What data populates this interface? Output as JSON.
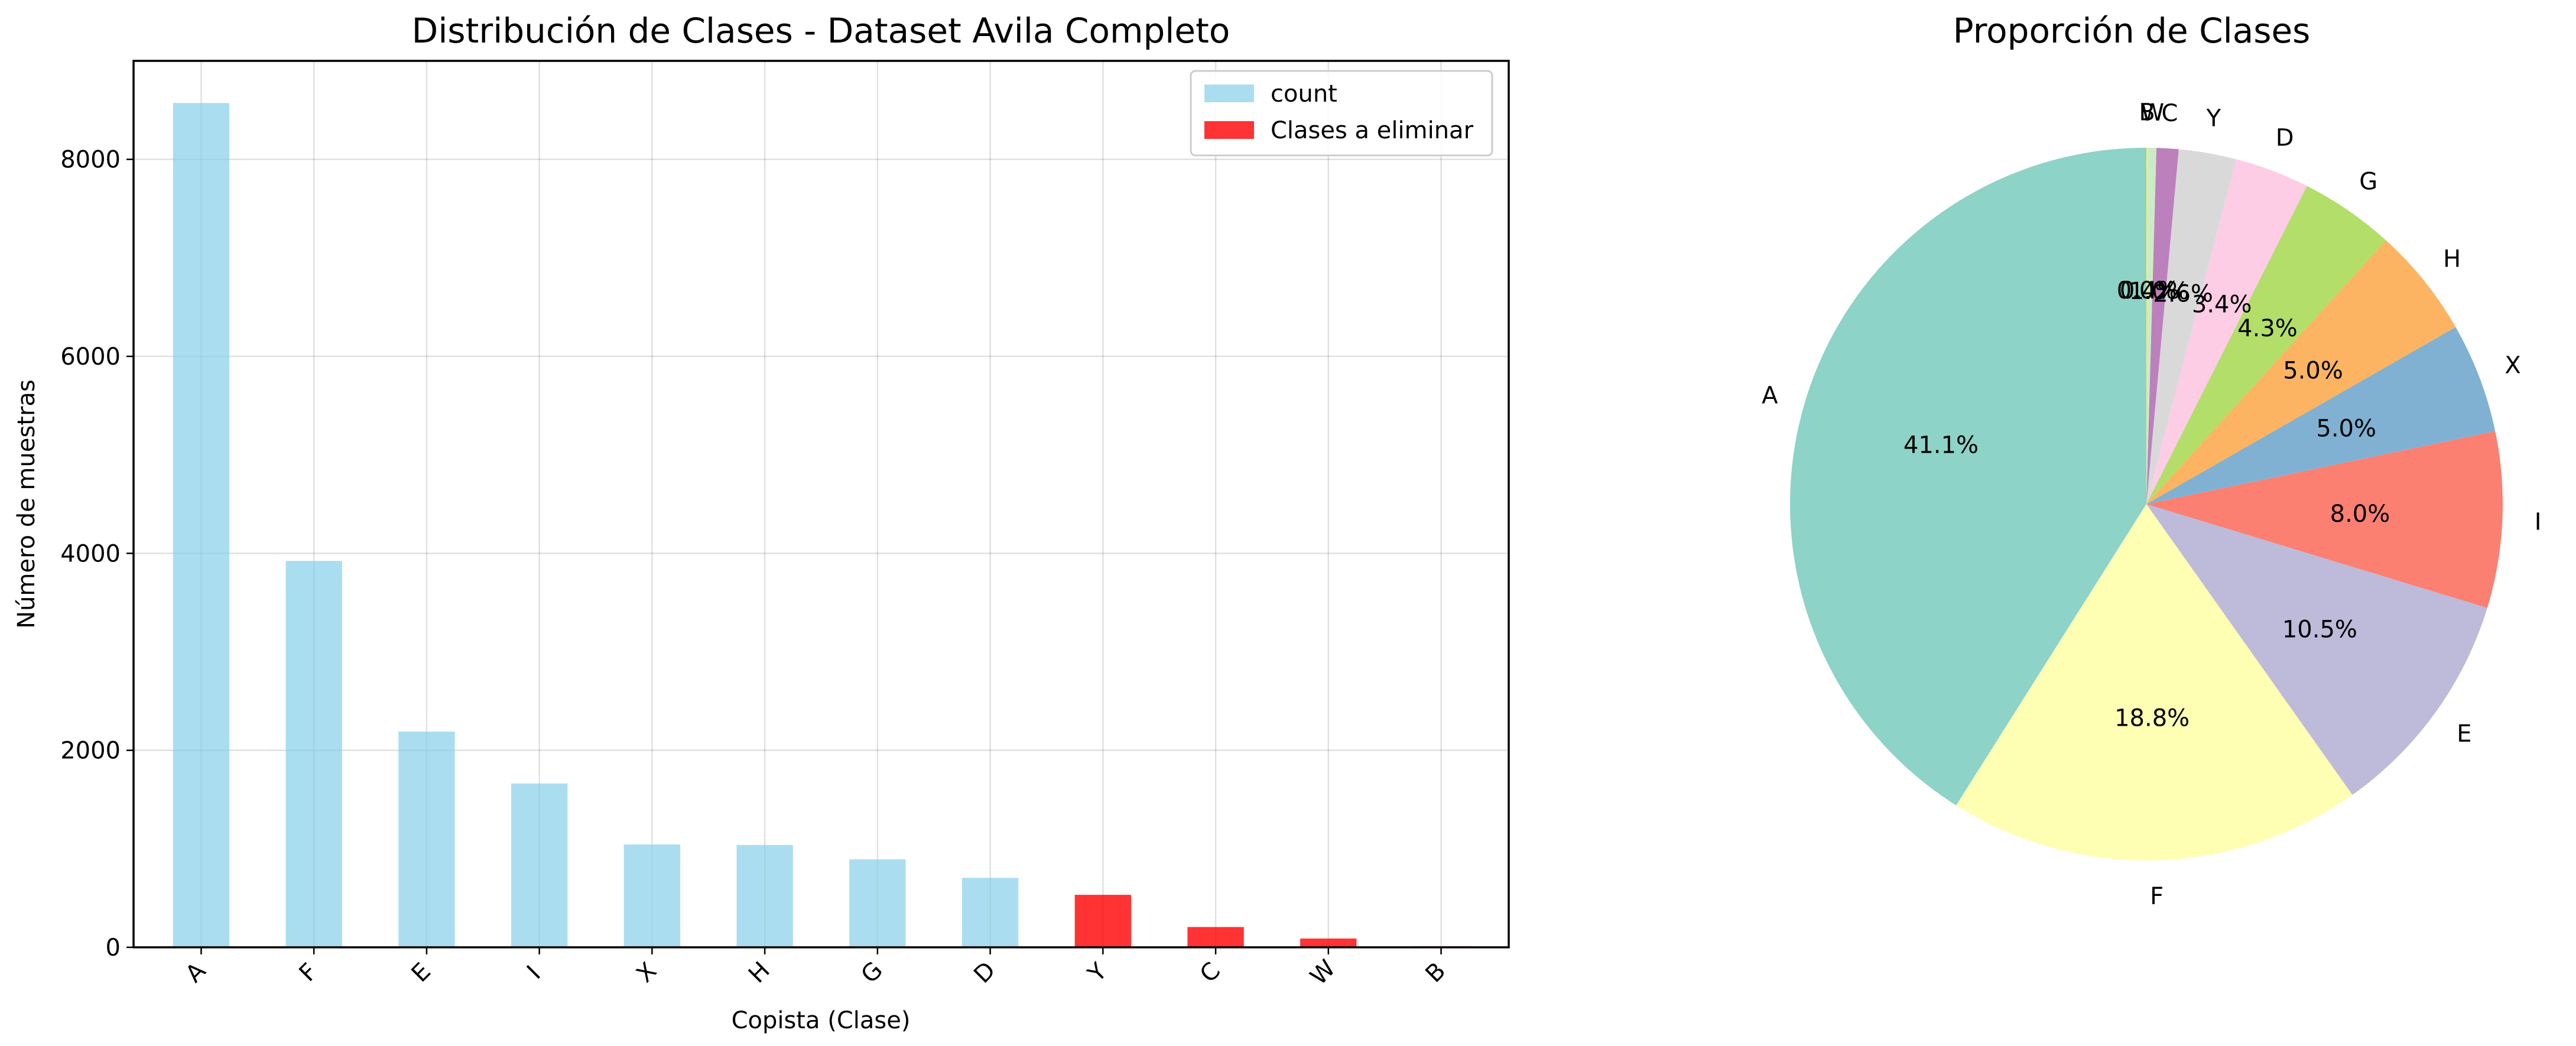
{
  "chart_data": [
    {
      "type": "bar",
      "title": "Distribución de Clases - Dataset Avila Completo",
      "xlabel": "Copista (Clase)",
      "ylabel": "Número de muestras",
      "ylim": [
        0,
        9000
      ],
      "yticks": [
        0,
        2000,
        4000,
        6000,
        8000
      ],
      "grid": true,
      "legend_placement": "top-right",
      "categories": [
        "A",
        "F",
        "E",
        "I",
        "X",
        "H",
        "G",
        "D",
        "Y",
        "C",
        "W",
        "B"
      ],
      "series": [
        {
          "name": "count",
          "color": "#87ceeb",
          "values": [
            8572,
            3923,
            2190,
            1663,
            1044,
            1039,
            893,
            705,
            null,
            null,
            null,
            null
          ]
        },
        {
          "name": "Clases a eliminar",
          "color": "#ff0000",
          "values": [
            null,
            null,
            null,
            null,
            null,
            null,
            null,
            null,
            533,
            206,
            89,
            10
          ]
        }
      ]
    },
    {
      "type": "pie",
      "title": "Proporción de Clases",
      "start_angle_deg": 90,
      "direction": "counterclockwise",
      "slices": [
        {
          "label": "A",
          "pct_label": "41.1%",
          "value": 41.1,
          "color": "#8dd3c7"
        },
        {
          "label": "F",
          "pct_label": "18.8%",
          "value": 18.8,
          "color": "#ffffb3"
        },
        {
          "label": "E",
          "pct_label": "10.5%",
          "value": 10.5,
          "color": "#bebada"
        },
        {
          "label": "I",
          "pct_label": "8.0%",
          "value": 8.0,
          "color": "#fb8072"
        },
        {
          "label": "X",
          "pct_label": "5.0%",
          "value": 5.0,
          "color": "#80b1d3"
        },
        {
          "label": "H",
          "pct_label": "5.0%",
          "value": 5.0,
          "color": "#fdb462"
        },
        {
          "label": "G",
          "pct_label": "4.3%",
          "value": 4.3,
          "color": "#b3de69"
        },
        {
          "label": "D",
          "pct_label": "3.4%",
          "value": 3.4,
          "color": "#fccde5"
        },
        {
          "label": "Y",
          "pct_label": "2.6%",
          "value": 2.6,
          "color": "#d9d9d9"
        },
        {
          "label": "C",
          "pct_label": "1.0%",
          "value": 1.0,
          "color": "#bc80bd"
        },
        {
          "label": "W",
          "pct_label": "0.4%",
          "value": 0.4,
          "color": "#ccebc5"
        },
        {
          "label": "B",
          "pct_label": "0.0%",
          "value": 0.05,
          "color": "#ffed6f"
        }
      ]
    }
  ]
}
